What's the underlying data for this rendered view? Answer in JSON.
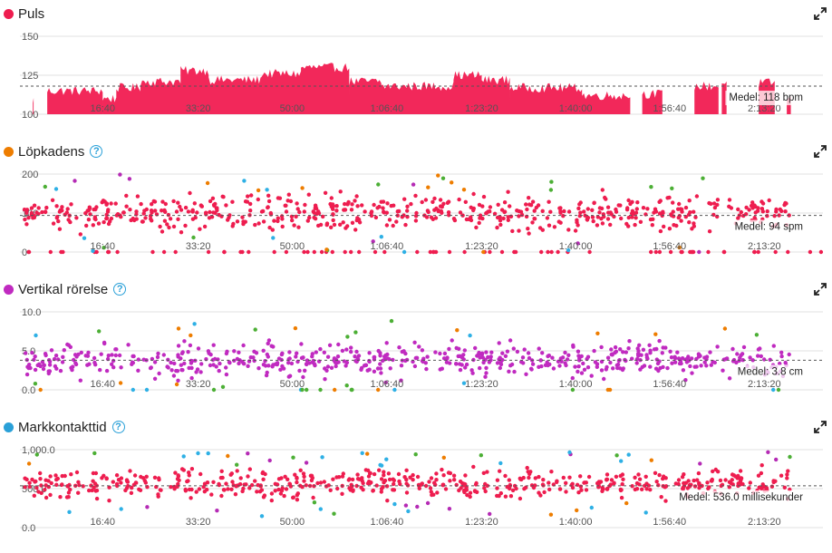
{
  "x_ticks": [
    "16:40",
    "33:20",
    "50:00",
    "1:06:40",
    "1:23:20",
    "1:40:00",
    "1:56:40",
    "2:13:20"
  ],
  "charts": [
    {
      "key": "puls",
      "title": "Puls",
      "dot_color": "#ee1d4f",
      "help": false,
      "type": "area",
      "color": "#f2285a",
      "y_min": 100,
      "y_max": 150,
      "y_ticks": [
        "150",
        "125",
        "100"
      ],
      "y_tick_values": [
        150,
        125,
        100
      ],
      "avg_value": 118,
      "avg_label": "Medel: 118 bpm",
      "segments": [
        {
          "start": 0.016,
          "end": 0.017,
          "level": 109
        },
        {
          "start": 0.034,
          "end": 0.103,
          "level": 115
        },
        {
          "start": 0.103,
          "end": 0.12,
          "level": 110
        },
        {
          "start": 0.12,
          "end": 0.15,
          "level": 117
        },
        {
          "start": 0.15,
          "end": 0.2,
          "level": 121
        },
        {
          "start": 0.2,
          "end": 0.235,
          "level": 128
        },
        {
          "start": 0.235,
          "end": 0.3,
          "level": 122
        },
        {
          "start": 0.3,
          "end": 0.35,
          "level": 126
        },
        {
          "start": 0.35,
          "end": 0.41,
          "level": 130
        },
        {
          "start": 0.41,
          "end": 0.45,
          "level": 121
        },
        {
          "start": 0.45,
          "end": 0.54,
          "level": 118
        },
        {
          "start": 0.54,
          "end": 0.575,
          "level": 125
        },
        {
          "start": 0.575,
          "end": 0.61,
          "level": 122
        },
        {
          "start": 0.61,
          "end": 0.7,
          "level": 117
        },
        {
          "start": 0.7,
          "end": 0.76,
          "level": 112
        },
        {
          "start": 0.775,
          "end": 0.8,
          "level": 113
        },
        {
          "start": 0.84,
          "end": 0.87,
          "level": 118
        },
        {
          "start": 0.874,
          "end": 0.88,
          "level": 120
        },
        {
          "start": 0.92,
          "end": 0.94,
          "level": 120
        },
        {
          "start": 0.955,
          "end": 0.96,
          "level": 110
        }
      ]
    },
    {
      "key": "lopkadens",
      "title": "Löpkadens",
      "dot_color": "#ee7d00",
      "help": true,
      "type": "scatter",
      "color": "#ee1d4f",
      "accent_colors": [
        "#2eb0e5",
        "#ee7d00",
        "#4caf35",
        "#b52bb5"
      ],
      "y_min": 0,
      "y_max": 200,
      "y_ticks": [
        "200",
        "100",
        "0"
      ],
      "y_tick_values": [
        200,
        100,
        0
      ],
      "avg_value": 94,
      "avg_label": "Medel: 94 spm",
      "center": 100,
      "spread": 32,
      "zero_line": true
    },
    {
      "key": "vertikal",
      "title": "Vertikal rörelse",
      "dot_color": "#c02ac0",
      "help": true,
      "type": "scatter",
      "color": "#c02ac0",
      "accent_colors": [
        "#2eb0e5",
        "#ee7d00",
        "#4caf35"
      ],
      "y_min": 0,
      "y_max": 10,
      "y_ticks": [
        "10.0",
        "5.0",
        "0.0"
      ],
      "y_tick_values": [
        10,
        5,
        0
      ],
      "avg_value": 3.8,
      "avg_label": "Medel: 3.8 cm",
      "center": 3.8,
      "spread": 1.6,
      "zero_line": false
    },
    {
      "key": "markkontakt",
      "title": "Markkontakttid",
      "dot_color": "#2aa0d8",
      "help": true,
      "type": "scatter",
      "color": "#ee1d4f",
      "accent_colors": [
        "#2eb0e5",
        "#ee7d00",
        "#4caf35",
        "#b52bb5"
      ],
      "y_min": 0,
      "y_max": 1000,
      "y_ticks": [
        "1,000.0",
        "500.0",
        "0.0"
      ],
      "y_tick_values": [
        1000,
        500,
        0
      ],
      "avg_value": 536,
      "avg_label": "Medel: 536.0 millisekunder",
      "center": 560,
      "spread": 130,
      "zero_line": false
    }
  ]
}
